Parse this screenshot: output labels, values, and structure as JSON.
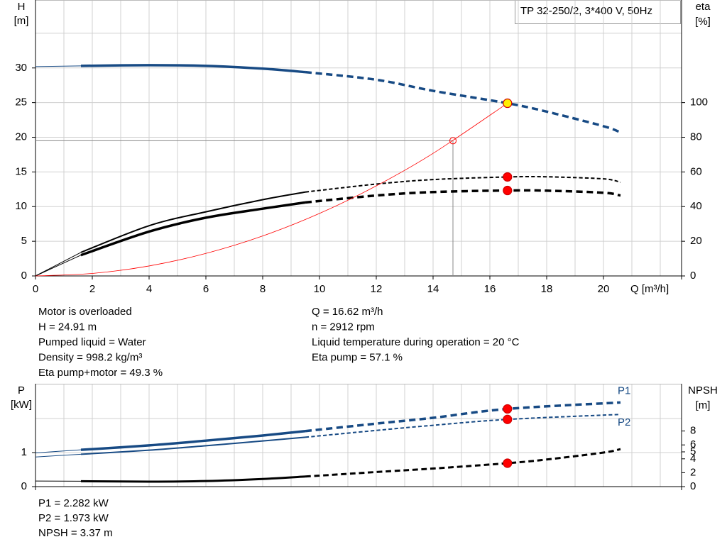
{
  "model": "TP 32-250/2, 3*400 V, 50Hz",
  "notes_left": [
    "Motor is overloaded",
    "H = 24.91 m",
    "Pumped liquid = Water",
    "Density = 998.2 kg/m³",
    "Eta pump+motor = 49.3 %"
  ],
  "notes_right": [
    "Q = 16.62 m³/h",
    "n = 2912 rpm",
    "Liquid temperature during operation = 20 °C",
    "Eta pump = 57.1 %"
  ],
  "notes_bottom": [
    "P1 = 2.282 kW",
    "P2 = 1.973 kW",
    "NPSH = 3.37 m"
  ],
  "chart_data": [
    {
      "type": "line",
      "x_label": "Q [m³/h]",
      "y_label": [
        "H",
        "[m]"
      ],
      "y2_label": [
        "eta",
        "[%]"
      ],
      "xlim": [
        0,
        22.75
      ],
      "ylim": [
        0,
        39.8
      ],
      "y2lim": [
        0,
        159.2
      ],
      "xticks": [
        0,
        2,
        4,
        6,
        8,
        10,
        12,
        14,
        16,
        18,
        20
      ],
      "yticks": [
        0,
        5,
        10,
        15,
        20,
        25,
        30
      ],
      "y2ticks": [
        0,
        20,
        40,
        60,
        80,
        100
      ],
      "grid_x": [
        1,
        2,
        3,
        4,
        5,
        6,
        7,
        8,
        9,
        10,
        11,
        12,
        13,
        14,
        15,
        16,
        17,
        18,
        19,
        20,
        21,
        22
      ],
      "grid_y": [
        5,
        10,
        15,
        20,
        25,
        30,
        35
      ],
      "series": [
        {
          "color": "#174a84",
          "width": 3.5,
          "thin_until": 1.6,
          "dash_from": 9.5,
          "axis": "y",
          "x": [
            0,
            1.6,
            4,
            6,
            8,
            9.5,
            12,
            14,
            16.62,
            18,
            20,
            20.6
          ],
          "values": [
            30.2,
            30.3,
            30.4,
            30.3,
            29.9,
            29.4,
            28.3,
            26.7,
            24.91,
            23.7,
            21.6,
            20.7
          ]
        },
        {
          "color": "#000000",
          "width": 2,
          "thin_until": 1.6,
          "dash_from": 9.5,
          "axis": "y2",
          "x": [
            0,
            1.6,
            4,
            6,
            8,
            9.5,
            12,
            14,
            16.62,
            18,
            20,
            20.6
          ],
          "values": [
            0,
            13.6,
            29,
            37,
            44,
            48.4,
            53,
            55.6,
            57.1,
            57.2,
            56,
            54
          ]
        },
        {
          "color": "#000000",
          "width": 3.5,
          "thin_until": 1.6,
          "dash_from": 9.5,
          "axis": "y2",
          "x": [
            0,
            1.6,
            4,
            6,
            8,
            9.5,
            12,
            14,
            16.62,
            18,
            20,
            20.6
          ],
          "values": [
            0,
            12,
            25.6,
            33.6,
            38.8,
            42.4,
            46.4,
            48.4,
            49.3,
            49.2,
            48,
            46.4
          ]
        },
        {
          "color": "#ff0000",
          "width": 0.8,
          "axis": "y",
          "x": [
            0,
            2,
            4,
            6,
            8,
            10,
            12,
            14,
            16.62
          ],
          "values": [
            0,
            0.36,
            1.44,
            3.25,
            5.77,
            9.02,
            12.99,
            17.68,
            24.91
          ]
        }
      ],
      "points": [
        {
          "x": 16.62,
          "y": 24.91,
          "axis": "y",
          "fill": "#ffee00"
        },
        {
          "x": 16.62,
          "y": 57.1,
          "axis": "y2",
          "fill": "#ff0000"
        },
        {
          "x": 16.62,
          "y": 49.3,
          "axis": "y2",
          "fill": "#ff0000"
        }
      ],
      "marker": {
        "x": 14.7,
        "y": 19.5
      }
    },
    {
      "type": "line",
      "y_label": [
        "P",
        "[kW]"
      ],
      "y2_label": [
        "NPSH",
        "[m]"
      ],
      "xlim": [
        0,
        22.75
      ],
      "ylim": [
        0,
        3.02
      ],
      "y2lim": [
        0,
        14.8
      ],
      "yticks": [
        0,
        1
      ],
      "y2ticks": [
        0,
        2,
        4,
        5,
        6,
        8
      ],
      "grid_x": [
        1,
        2,
        3,
        4,
        5,
        6,
        7,
        8,
        9,
        10,
        11,
        12,
        13,
        14,
        15,
        16,
        17,
        18,
        19,
        20,
        21,
        22
      ],
      "grid_y": [
        1,
        2
      ],
      "series": [
        {
          "name": "P1",
          "color": "#174a84",
          "width": 3.5,
          "thin_until": 1.6,
          "dash_from": 9.5,
          "axis": "y",
          "x": [
            0,
            1.6,
            4,
            6,
            8,
            9.5,
            12,
            14,
            16.62,
            20.6
          ],
          "values": [
            0.99,
            1.08,
            1.21,
            1.35,
            1.5,
            1.63,
            1.85,
            2.02,
            2.282,
            2.47
          ]
        },
        {
          "name": "P2",
          "color": "#174a84",
          "width": 2,
          "thin_until": 1.6,
          "dash_from": 9.5,
          "axis": "y",
          "x": [
            0,
            1.6,
            4,
            6,
            8,
            9.5,
            12,
            14,
            16.62,
            20.6
          ],
          "values": [
            0.87,
            0.95,
            1.07,
            1.2,
            1.34,
            1.45,
            1.65,
            1.8,
            1.973,
            2.12
          ]
        },
        {
          "color": "#000000",
          "width": 3,
          "thin_until": 1.6,
          "dash_from": 9.5,
          "axis": "y2",
          "x": [
            0,
            1.6,
            4,
            6,
            8,
            9.5,
            12,
            14,
            16.62,
            18,
            20,
            20.6
          ],
          "values": [
            0.8,
            0.78,
            0.72,
            0.8,
            1.1,
            1.45,
            2.1,
            2.6,
            3.37,
            3.9,
            4.9,
            5.4
          ]
        }
      ],
      "points": [
        {
          "x": 16.62,
          "y": 2.282,
          "axis": "y",
          "fill": "#ff0000"
        },
        {
          "x": 16.62,
          "y": 1.973,
          "axis": "y",
          "fill": "#ff0000"
        },
        {
          "x": 16.62,
          "y": 3.37,
          "axis": "y2",
          "fill": "#ff0000"
        }
      ]
    }
  ]
}
